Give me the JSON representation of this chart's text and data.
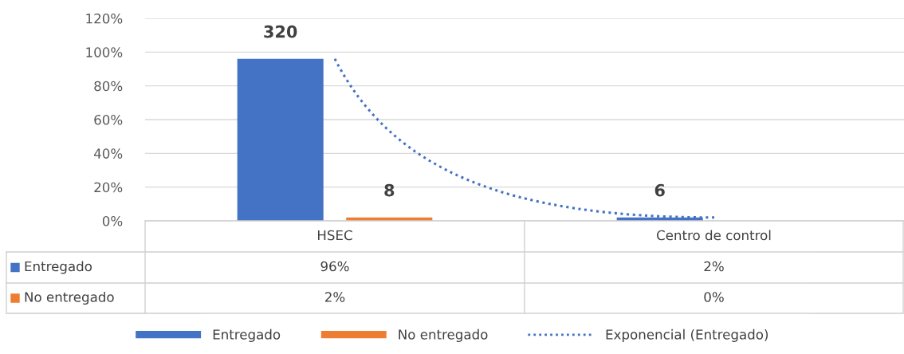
{
  "chart_data": {
    "type": "bar",
    "categories": [
      "HSEC",
      "Centro de control"
    ],
    "ylim": [
      0,
      120
    ],
    "yticks": [
      {
        "value": 0,
        "label": "0%"
      },
      {
        "value": 20,
        "label": "20%"
      },
      {
        "value": 40,
        "label": "40%"
      },
      {
        "value": 60,
        "label": "60%"
      },
      {
        "value": 80,
        "label": "80%"
      },
      {
        "value": 100,
        "label": "100%"
      },
      {
        "value": 120,
        "label": "120%"
      }
    ],
    "grid": "y",
    "legend": "bottom",
    "annotations": [
      {
        "text": "320",
        "x": "HSEC",
        "y": 96
      },
      "8",
      "6"
    ],
    "series": [
      {
        "name": "Entregado",
        "color": "#4472c4",
        "values": [
          96,
          2
        ],
        "value_labels": [
          "96%",
          "2%"
        ]
      },
      {
        "name": "No entregado",
        "color": "#ed7d31",
        "values": [
          2,
          0
        ],
        "value_labels": [
          "2%",
          "0%"
        ]
      },
      {
        "name": "Exponencial (Entregado)",
        "type": "line",
        "color": "#4472c4",
        "line_style": "dotted",
        "values": [
          96,
          2
        ]
      }
    ]
  }
}
